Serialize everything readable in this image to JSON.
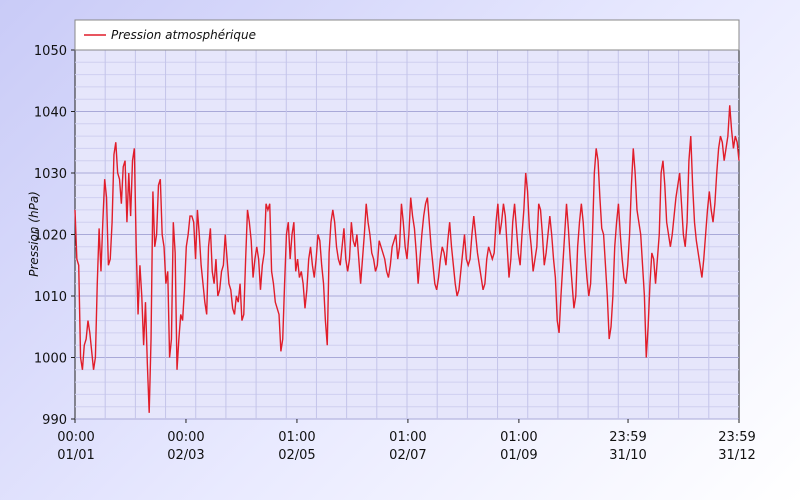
{
  "chart_data": {
    "type": "line",
    "legend": {
      "label": "Pression atmosphérique",
      "position": "top-left",
      "color": "#e11d2a"
    },
    "ylabel": "Pression (hPa)",
    "ylim": [
      990,
      1050
    ],
    "yticks": [
      990,
      1000,
      1010,
      1020,
      1030,
      1040,
      1050
    ],
    "xlim": [
      0,
      365
    ],
    "xticks": [
      {
        "x": 0,
        "time": "00:00",
        "date": "01/01"
      },
      {
        "x": 61,
        "time": "00:00",
        "date": "02/03"
      },
      {
        "x": 122,
        "time": "01:00",
        "date": "02/05"
      },
      {
        "x": 183,
        "time": "01:00",
        "date": "02/07"
      },
      {
        "x": 244,
        "time": "01:00",
        "date": "01/09"
      },
      {
        "x": 304,
        "time": "23:59",
        "date": "31/10"
      },
      {
        "x": 365,
        "time": "23:59",
        "date": "31/12"
      }
    ],
    "grid": true,
    "series": [
      {
        "name": "Pression atmosphérique",
        "color": "#e11d2a",
        "values": [
          1024,
          1016,
          1015,
          1000,
          998,
          1002,
          1003,
          1006,
          1004,
          1001,
          998,
          1000,
          1012,
          1021,
          1014,
          1022,
          1029,
          1026,
          1015,
          1016,
          1022,
          1033,
          1035,
          1030,
          1029,
          1025,
          1031,
          1032,
          1022,
          1030,
          1023,
          1032,
          1034,
          1018,
          1007,
          1015,
          1010,
          1002,
          1009,
          999,
          991,
          1003,
          1027,
          1018,
          1020,
          1028,
          1029,
          1020,
          1018,
          1012,
          1014,
          1000,
          1003,
          1022,
          1017,
          998,
          1003,
          1007,
          1006,
          1011,
          1018,
          1020,
          1023,
          1023,
          1022,
          1016,
          1024,
          1020,
          1015,
          1012,
          1009,
          1007,
          1018,
          1021,
          1014,
          1012,
          1016,
          1010,
          1011,
          1014,
          1015,
          1020,
          1016,
          1012,
          1011,
          1008,
          1007,
          1010,
          1009,
          1012,
          1006,
          1007,
          1016,
          1024,
          1022,
          1019,
          1013,
          1016,
          1018,
          1016,
          1011,
          1015,
          1017,
          1025,
          1024,
          1025,
          1014,
          1012,
          1009,
          1008,
          1007,
          1001,
          1003,
          1012,
          1020,
          1022,
          1016,
          1020,
          1022,
          1014,
          1016,
          1013,
          1014,
          1012,
          1008,
          1011,
          1016,
          1018,
          1015,
          1013,
          1016,
          1020,
          1019,
          1015,
          1012,
          1006,
          1002,
          1017,
          1022,
          1024,
          1022,
          1018,
          1016,
          1015,
          1018,
          1021,
          1016,
          1014,
          1016,
          1022,
          1019,
          1018,
          1020,
          1016,
          1012,
          1016,
          1020,
          1025,
          1022,
          1020,
          1017,
          1016,
          1014,
          1015,
          1019,
          1018,
          1017,
          1016,
          1014,
          1013,
          1015,
          1018,
          1019,
          1020,
          1016,
          1018,
          1025,
          1022,
          1018,
          1016,
          1020,
          1026,
          1023,
          1021,
          1017,
          1012,
          1016,
          1020,
          1023,
          1025,
          1026,
          1022,
          1018,
          1015,
          1012,
          1011,
          1013,
          1016,
          1018,
          1017,
          1015,
          1019,
          1022,
          1018,
          1015,
          1012,
          1010,
          1011,
          1014,
          1017,
          1020,
          1016,
          1015,
          1016,
          1020,
          1023,
          1020,
          1017,
          1015,
          1013,
          1011,
          1012,
          1016,
          1018,
          1017,
          1016,
          1017,
          1022,
          1025,
          1020,
          1022,
          1025,
          1023,
          1018,
          1013,
          1016,
          1022,
          1025,
          1021,
          1017,
          1015,
          1020,
          1024,
          1030,
          1027,
          1021,
          1018,
          1014,
          1016,
          1018,
          1025,
          1024,
          1020,
          1015,
          1017,
          1020,
          1023,
          1020,
          1016,
          1013,
          1006,
          1004,
          1010,
          1015,
          1020,
          1025,
          1021,
          1016,
          1012,
          1008,
          1010,
          1018,
          1022,
          1025,
          1022,
          1017,
          1013,
          1010,
          1012,
          1020,
          1030,
          1034,
          1032,
          1026,
          1021,
          1020,
          1015,
          1010,
          1003,
          1005,
          1010,
          1018,
          1022,
          1025,
          1020,
          1016,
          1013,
          1012,
          1015,
          1020,
          1028,
          1034,
          1030,
          1024,
          1022,
          1020,
          1015,
          1010,
          1000,
          1005,
          1012,
          1017,
          1016,
          1012,
          1016,
          1020,
          1030,
          1032,
          1028,
          1022,
          1020,
          1018,
          1020,
          1023,
          1026,
          1028,
          1030,
          1025,
          1020,
          1018,
          1022,
          1032,
          1036,
          1028,
          1022,
          1019,
          1017,
          1015,
          1013,
          1016,
          1020,
          1024,
          1027,
          1024,
          1022,
          1025,
          1030,
          1034,
          1036,
          1035,
          1032,
          1034,
          1036,
          1041,
          1037,
          1034,
          1036,
          1035,
          1032
        ]
      }
    ]
  }
}
